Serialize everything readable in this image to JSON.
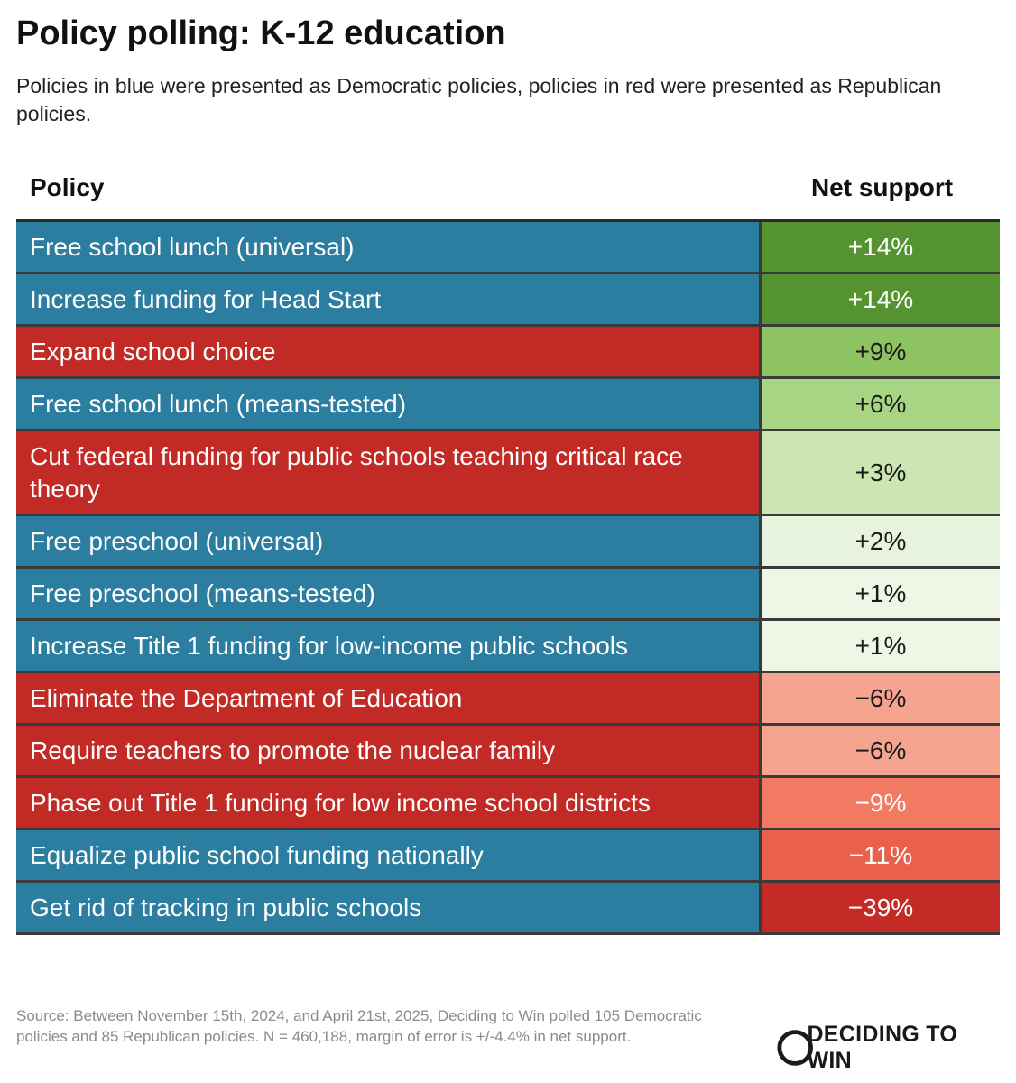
{
  "title": "Policy polling: K-12 education",
  "subtitle": "Policies in blue were presented as Democratic policies, policies in red were presented as Republican policies.",
  "columns": {
    "policy": "Policy",
    "support": "Net support"
  },
  "colors": {
    "democratic": "#2b7e9f",
    "republican": "#c22a26"
  },
  "chart_data": {
    "type": "table",
    "columns": [
      "Policy",
      "Net support"
    ],
    "rows": [
      {
        "policy": "Free school lunch (universal)",
        "party": "democratic",
        "net_support": 14,
        "label": "+14%",
        "cell_color": "#54932f",
        "text_color": "#ffffff"
      },
      {
        "policy": "Increase funding for Head Start",
        "party": "democratic",
        "net_support": 14,
        "label": "+14%",
        "cell_color": "#54932f",
        "text_color": "#ffffff"
      },
      {
        "policy": "Expand school choice",
        "party": "republican",
        "net_support": 9,
        "label": "+9%",
        "cell_color": "#8dc360",
        "text_color": "#1a1a1a"
      },
      {
        "policy": "Free school lunch (means-tested)",
        "party": "democratic",
        "net_support": 6,
        "label": "+6%",
        "cell_color": "#a7d584",
        "text_color": "#1a1a1a"
      },
      {
        "policy": "Cut federal funding for public schools teaching critical race theory",
        "party": "republican",
        "net_support": 3,
        "label": "+3%",
        "cell_color": "#cbe6b2",
        "text_color": "#1a1a1a"
      },
      {
        "policy": "Free preschool (universal)",
        "party": "democratic",
        "net_support": 2,
        "label": "+2%",
        "cell_color": "#e7f3dc",
        "text_color": "#1a1a1a"
      },
      {
        "policy": "Free preschool (means-tested)",
        "party": "democratic",
        "net_support": 1,
        "label": "+1%",
        "cell_color": "#eef7e6",
        "text_color": "#1a1a1a"
      },
      {
        "policy": "Increase Title 1 funding for low-income public schools",
        "party": "democratic",
        "net_support": 1,
        "label": "+1%",
        "cell_color": "#eef7e6",
        "text_color": "#1a1a1a"
      },
      {
        "policy": "Eliminate the Department of Education",
        "party": "republican",
        "net_support": -6,
        "label": "−6%",
        "cell_color": "#f6a48f",
        "text_color": "#1a1a1a"
      },
      {
        "policy": "Require teachers to promote the nuclear family",
        "party": "republican",
        "net_support": -6,
        "label": "−6%",
        "cell_color": "#f6a48f",
        "text_color": "#1a1a1a"
      },
      {
        "policy": "Phase out Title 1 funding for low income school districts",
        "party": "republican",
        "net_support": -9,
        "label": "−9%",
        "cell_color": "#f37a62",
        "text_color": "#ffffff"
      },
      {
        "policy": "Equalize public school funding nationally",
        "party": "democratic",
        "net_support": -11,
        "label": "−11%",
        "cell_color": "#e9604b",
        "text_color": "#ffffff"
      },
      {
        "policy": "Get rid of tracking in public schools",
        "party": "democratic",
        "net_support": -39,
        "label": "−39%",
        "cell_color": "#c42a26",
        "text_color": "#ffffff"
      }
    ]
  },
  "footer": {
    "source": "Source: Between November 15th, 2024, and April 21st, 2025, Deciding to Win polled 105 Democratic policies and 85 Republican policies. N = 460,188, margin of error is +/-4.4% in net support.",
    "logo_text": "DECIDING TO WIN",
    "logo_icon": "deciding-to-win-logo-icon"
  }
}
